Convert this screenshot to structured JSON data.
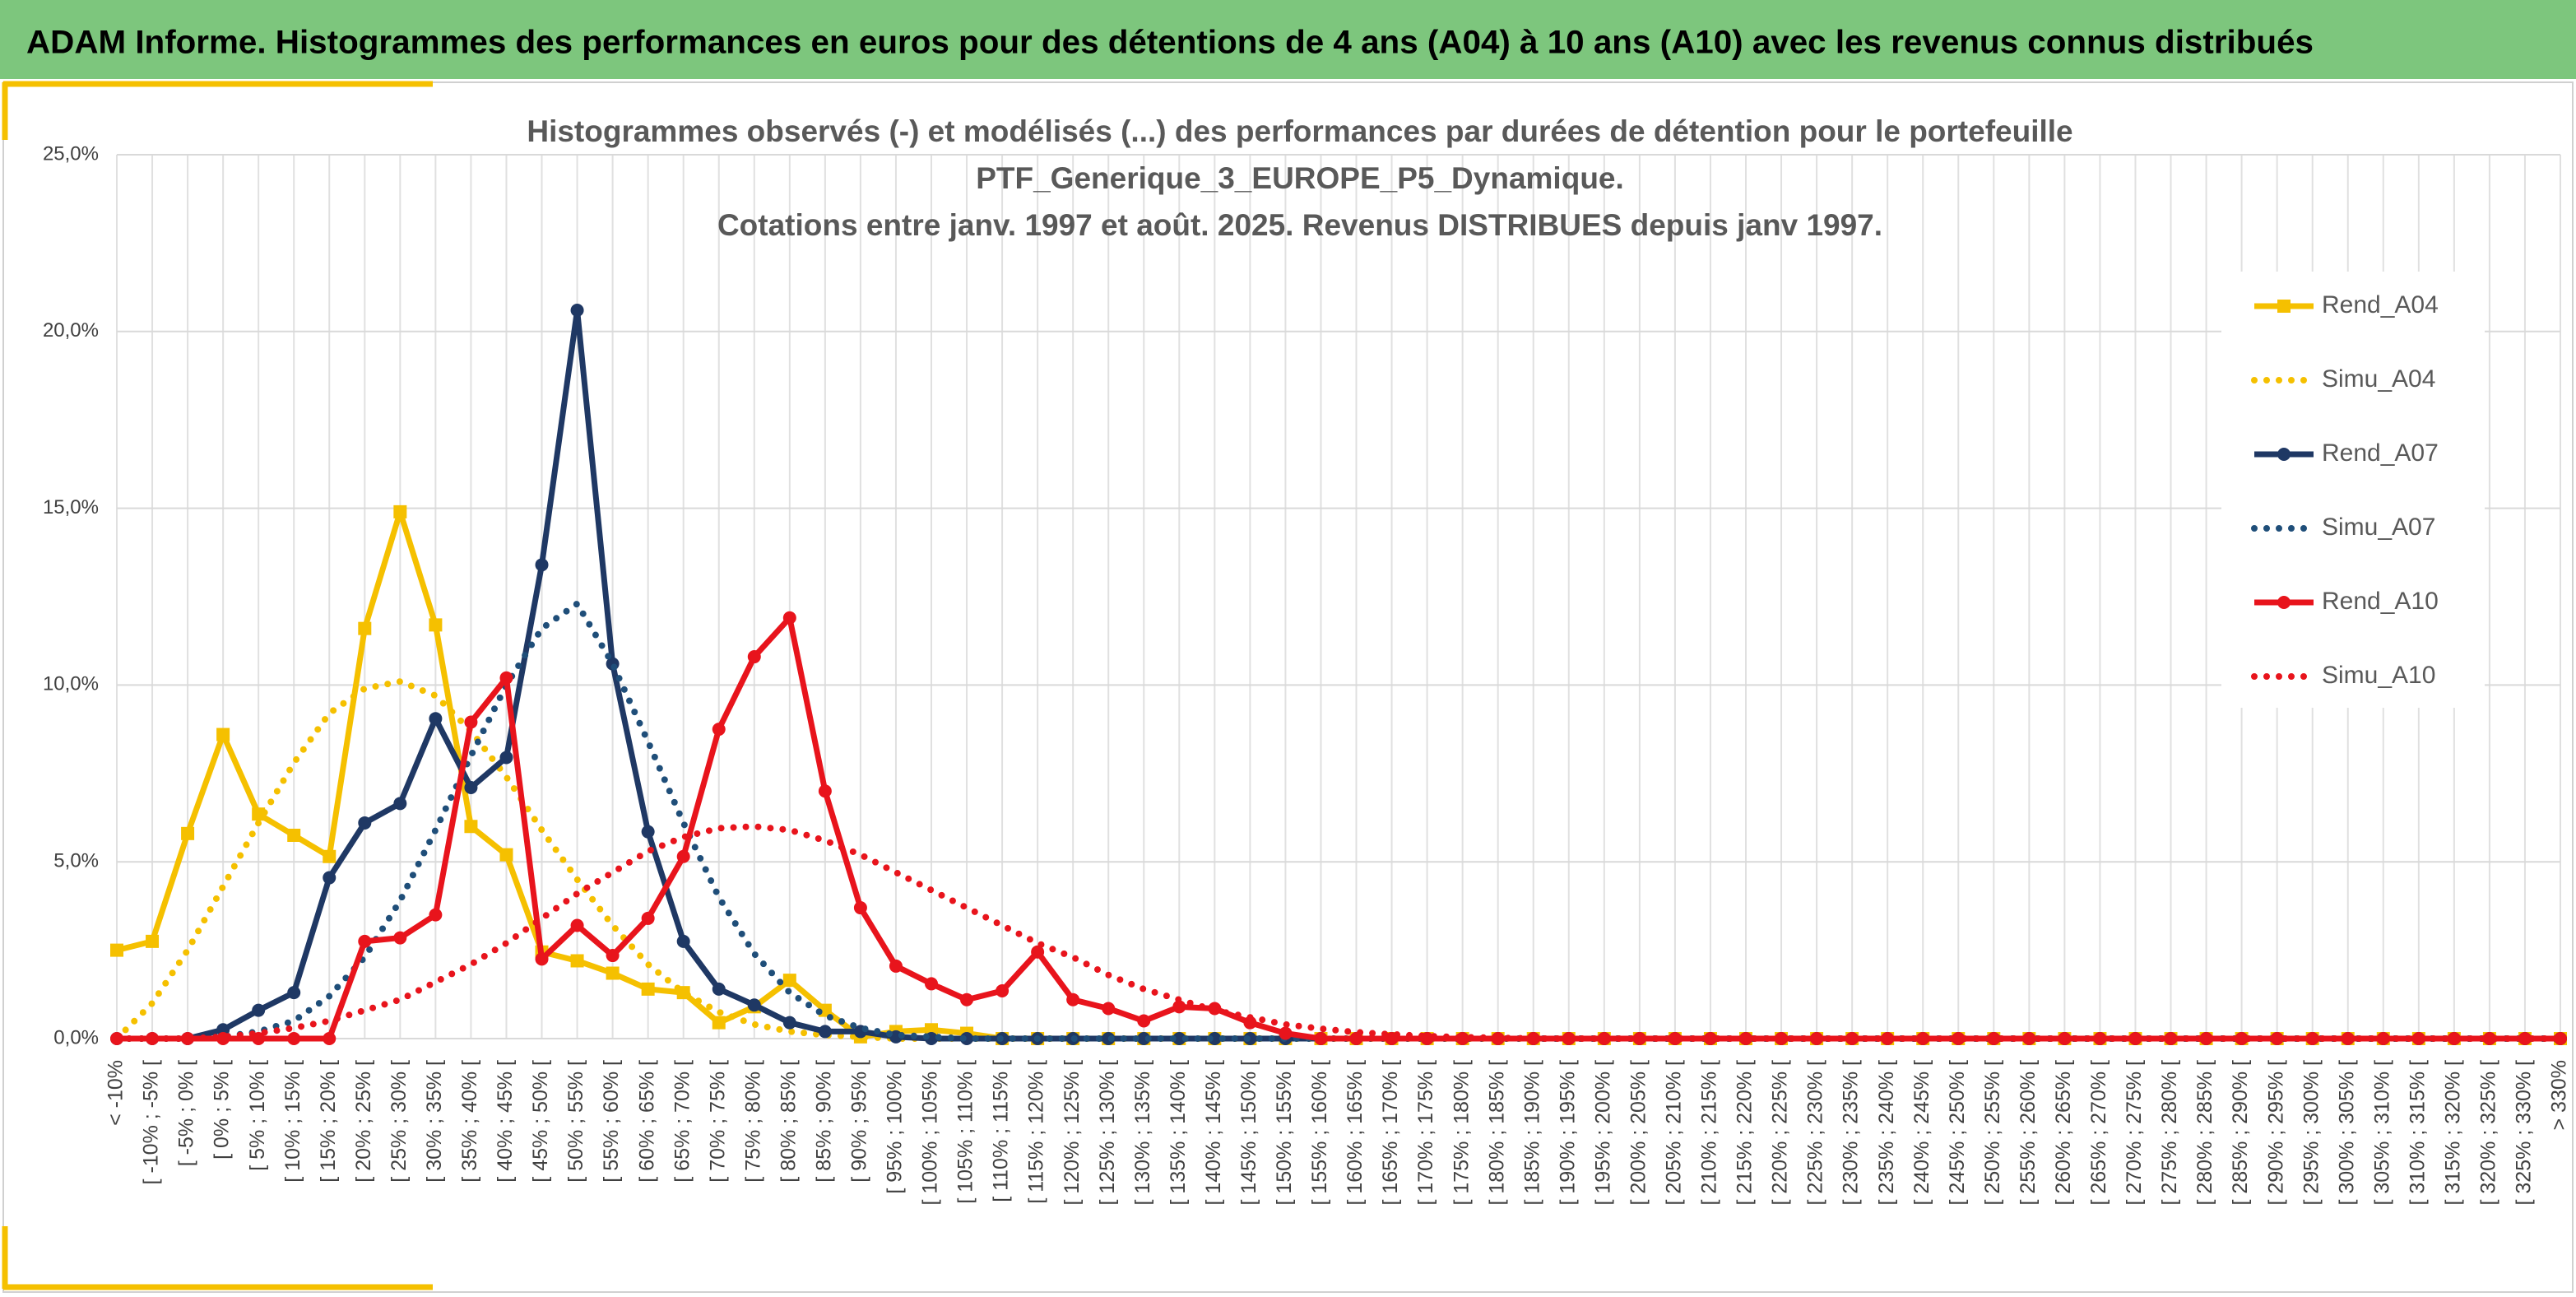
{
  "header": {
    "title": "ADAM Informe. Histogrammes des performances en euros pour des détentions de 4 ans (A04) à 10 ans (A10) avec les revenus connus distribués"
  },
  "chart_data": {
    "type": "line",
    "title": [
      "Histogrammes observés (-) et modélisés (...) des performances par durées de détention pour le portefeuille",
      "PTF_Generique_3_EUROPE_P5_Dynamique.",
      "Cotations entre janv. 1997 et août. 2025. Revenus DISTRIBUES depuis janv 1997."
    ],
    "categories": [
      "< -10%",
      "[ -10% ; -5% [",
      "[ -5% ; 0% [",
      "[ 0% ; 5% [",
      "[ 5% ; 10% [",
      "[ 10% ; 15% [",
      "[ 15% ; 20% [",
      "[ 20% ; 25% [",
      "[ 25% ; 30% [",
      "[ 30% ; 35% [",
      "[ 35% ; 40% [",
      "[ 40% ; 45% [",
      "[ 45% ; 50% [",
      "[ 50% ; 55% [",
      "[ 55% ; 60% [",
      "[ 60% ; 65% [",
      "[ 65% ; 70% [",
      "[ 70% ; 75% [",
      "[ 75% ; 80% [",
      "[ 80% ; 85% [",
      "[ 85% ; 90% [",
      "[ 90% ; 95% [",
      "[ 95% ; 100% [",
      "[ 100% ; 105% [",
      "[ 105% ; 110% [",
      "[ 110% ; 115% [",
      "[ 115% ; 120% [",
      "[ 120% ; 125% [",
      "[ 125% ; 130% [",
      "[ 130% ; 135% [",
      "[ 135% ; 140% [",
      "[ 140% ; 145% [",
      "[ 145% ; 150% [",
      "[ 150% ; 155% [",
      "[ 155% ; 160% [",
      "[ 160% ; 165% [",
      "[ 165% ; 170% [",
      "[ 170% ; 175% [",
      "[ 175% ; 180% [",
      "[ 180% ; 185% [",
      "[ 185% ; 190% [",
      "[ 190% ; 195% [",
      "[ 195% ; 200% [",
      "[ 200% ; 205% [",
      "[ 205% ; 210% [",
      "[ 210% ; 215% [",
      "[ 215% ; 220% [",
      "[ 220% ; 225% [",
      "[ 225% ; 230% [",
      "[ 230% ; 235% [",
      "[ 235% ; 240% [",
      "[ 240% ; 245% [",
      "[ 245% ; 250% [",
      "[ 250% ; 255% [",
      "[ 255% ; 260% [",
      "[ 260% ; 265% [",
      "[ 265% ; 270% [",
      "[ 270% ; 275% [",
      "[ 275% ; 280% [",
      "[ 280% ; 285% [",
      "[ 285% ; 290% [",
      "[ 290% ; 295% [",
      "[ 295% ; 300% [",
      "[ 300% ; 305% [",
      "[ 305% ; 310% [",
      "[ 310% ; 315% [",
      "[ 315% ; 320% [",
      "[ 320% ; 325% [",
      "[ 325% ; 330% [",
      "> 330%"
    ],
    "series": [
      {
        "name": "Rend_A04",
        "color": "#f5c000",
        "dash": false,
        "marker": "square",
        "values": [
          2.5,
          2.75,
          5.8,
          8.6,
          6.35,
          5.75,
          5.15,
          11.6,
          14.9,
          11.7,
          6.0,
          5.2,
          2.45,
          2.2,
          1.85,
          1.4,
          1.3,
          0.45,
          0.9,
          1.65,
          0.8,
          0.05,
          0.2,
          0.25,
          0.15,
          0,
          0,
          0,
          0,
          0,
          0,
          0,
          0,
          0,
          0,
          0,
          0,
          0,
          0,
          0,
          0,
          0,
          0,
          0,
          0,
          0,
          0,
          0,
          0,
          0,
          0,
          0,
          0,
          0,
          0,
          0,
          0,
          0,
          0,
          0,
          0,
          0,
          0,
          0,
          0,
          0,
          0,
          0,
          0,
          0
        ]
      },
      {
        "name": "Simu_A04",
        "color": "#f5c000",
        "dash": true,
        "marker": "none",
        "values": [
          0,
          1.0,
          2.5,
          4.3,
          6.1,
          7.8,
          9.2,
          9.9,
          10.1,
          9.7,
          8.7,
          7.4,
          5.9,
          4.5,
          3.2,
          2.1,
          1.3,
          0.75,
          0.4,
          0.2,
          0.1,
          0.05,
          0,
          0,
          0,
          0,
          0,
          0,
          0,
          0,
          0,
          0,
          0,
          0,
          0,
          0,
          0,
          0,
          0,
          0,
          0,
          0,
          0,
          0,
          0,
          0,
          0,
          0,
          0,
          0,
          0,
          0,
          0,
          0,
          0,
          0,
          0,
          0,
          0,
          0,
          0,
          0,
          0,
          0,
          0,
          0,
          0,
          0,
          0,
          0
        ]
      },
      {
        "name": "Rend_A07",
        "color": "#1f3864",
        "dash": false,
        "marker": "circle",
        "values": [
          0,
          0,
          0,
          0.25,
          0.8,
          1.3,
          4.55,
          6.1,
          6.65,
          9.05,
          7.1,
          7.95,
          13.4,
          20.6,
          10.6,
          5.85,
          2.75,
          1.4,
          0.95,
          0.45,
          0.2,
          0.2,
          0.05,
          0,
          0,
          0,
          0,
          0,
          0,
          0,
          0,
          0,
          0,
          0,
          0,
          0,
          0,
          0,
          0,
          0,
          0,
          0,
          0,
          0,
          0,
          0,
          0,
          0,
          0,
          0,
          0,
          0,
          0,
          0,
          0,
          0,
          0,
          0,
          0,
          0,
          0,
          0,
          0,
          0,
          0,
          0,
          0,
          0,
          0,
          0
        ]
      },
      {
        "name": "Simu_A07",
        "color": "#1f4e79",
        "dash": true,
        "marker": "none",
        "values": [
          0,
          0,
          0,
          0.05,
          0.2,
          0.5,
          1.2,
          2.3,
          3.9,
          5.9,
          8.0,
          10.0,
          11.6,
          12.3,
          10.6,
          8.4,
          6.1,
          4.0,
          2.4,
          1.3,
          0.65,
          0.3,
          0.1,
          0.05,
          0,
          0,
          0,
          0,
          0,
          0,
          0,
          0,
          0,
          0,
          0,
          0,
          0,
          0,
          0,
          0,
          0,
          0,
          0,
          0,
          0,
          0,
          0,
          0,
          0,
          0,
          0,
          0,
          0,
          0,
          0,
          0,
          0,
          0,
          0,
          0,
          0,
          0,
          0,
          0,
          0,
          0,
          0,
          0,
          0,
          0
        ]
      },
      {
        "name": "Rend_A10",
        "color": "#e8141c",
        "dash": false,
        "marker": "circle",
        "values": [
          0,
          0,
          0,
          0,
          0,
          0,
          0,
          2.75,
          2.85,
          3.5,
          8.95,
          10.2,
          2.25,
          3.2,
          2.35,
          3.4,
          5.15,
          8.75,
          10.8,
          11.9,
          7.0,
          3.7,
          2.05,
          1.55,
          1.1,
          1.35,
          2.45,
          1.1,
          0.85,
          0.5,
          0.9,
          0.85,
          0.45,
          0.15,
          0,
          0,
          0,
          0,
          0,
          0,
          0,
          0,
          0,
          0,
          0,
          0,
          0,
          0,
          0,
          0,
          0,
          0,
          0,
          0,
          0,
          0,
          0,
          0,
          0,
          0,
          0,
          0,
          0,
          0,
          0,
          0,
          0,
          0,
          0,
          0
        ]
      },
      {
        "name": "Simu_A10",
        "color": "#e8141c",
        "dash": true,
        "marker": "none",
        "values": [
          0,
          0,
          0,
          0.05,
          0.15,
          0.3,
          0.5,
          0.8,
          1.1,
          1.6,
          2.1,
          2.7,
          3.4,
          4.1,
          4.7,
          5.3,
          5.7,
          5.95,
          6.0,
          5.9,
          5.6,
          5.2,
          4.7,
          4.2,
          3.7,
          3.2,
          2.7,
          2.3,
          1.8,
          1.4,
          1.1,
          0.8,
          0.6,
          0.4,
          0.28,
          0.18,
          0.12,
          0.07,
          0.04,
          0.02,
          0,
          0,
          0,
          0,
          0,
          0,
          0,
          0,
          0,
          0,
          0,
          0,
          0,
          0,
          0,
          0,
          0,
          0,
          0,
          0,
          0,
          0,
          0,
          0,
          0,
          0,
          0,
          0,
          0,
          0
        ]
      }
    ],
    "ylim": [
      0,
      25
    ],
    "yticks": [
      {
        "value": 0,
        "label": "0,0%"
      },
      {
        "value": 5,
        "label": "5,0%"
      },
      {
        "value": 10,
        "label": "10,0%"
      },
      {
        "value": 15,
        "label": "15,0%"
      },
      {
        "value": 20,
        "label": "20,0%"
      },
      {
        "value": 25,
        "label": "25,0%"
      }
    ],
    "grid": true,
    "legend": "right"
  }
}
